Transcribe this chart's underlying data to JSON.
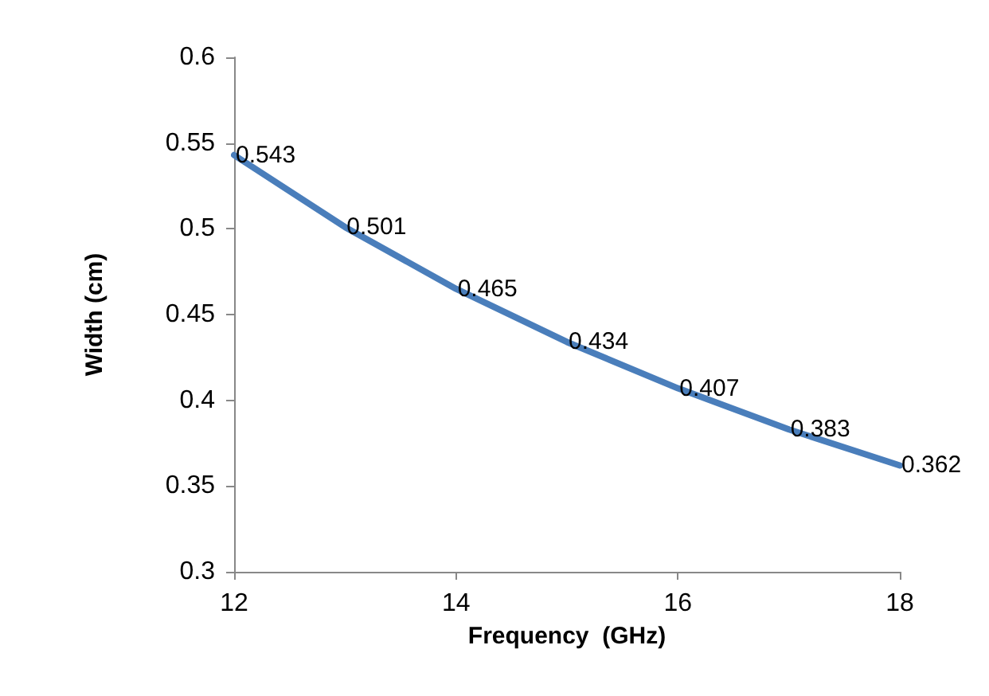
{
  "chart_data": {
    "type": "line",
    "xlabel": "Frequency  (GHz)",
    "ylabel": "Width (cm)",
    "x": [
      12,
      13,
      14,
      15,
      16,
      17,
      18
    ],
    "series": [
      {
        "color": "#4a7ebb",
        "values": [
          0.543,
          0.501,
          0.465,
          0.434,
          0.407,
          0.383,
          0.362
        ]
      }
    ],
    "xlim": [
      12,
      18
    ],
    "xticks": [
      12,
      14,
      16,
      18
    ],
    "ylim": [
      0.3,
      0.6
    ],
    "yticks": [
      0.3,
      0.35,
      0.4,
      0.45,
      0.5,
      0.55,
      0.6
    ],
    "data_labels": true,
    "grid": false,
    "marker": "none",
    "line_style": "solid"
  }
}
